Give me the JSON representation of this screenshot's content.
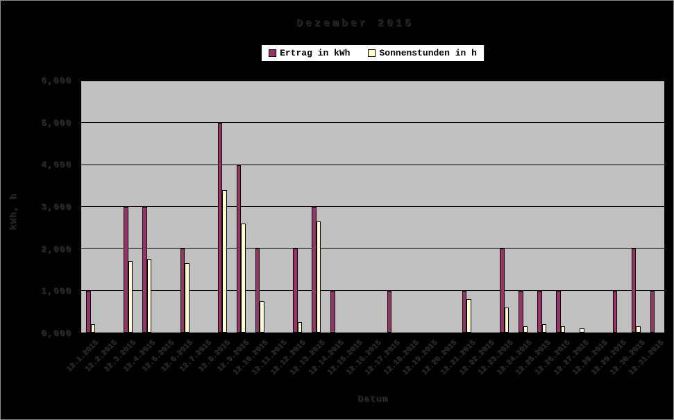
{
  "window": {
    "background_color": "#000000",
    "plot_background_color": "#C0C0C0",
    "gridline_color": "#000000"
  },
  "chart_data": {
    "type": "bar",
    "title": "Dezember 2015",
    "xlabel": "Datum",
    "ylabel": "kWh, h",
    "ylim": [
      0,
      6
    ],
    "ytick_labels": [
      "6,000",
      "5,000",
      "4,000",
      "3,000",
      "2,000",
      "1,000",
      "0,000"
    ],
    "grid": "horizontal",
    "legend_position": "top",
    "categories": [
      "12.1.2015",
      "12.2.2015",
      "12.3.2015",
      "12.4.2015",
      "12.5.2015",
      "12.6.2015",
      "12.7.2015",
      "12.8.2015",
      "12.9.2015",
      "12.10.2015",
      "12.11.2015",
      "12.12.2015",
      "12.13.2015",
      "12.14.2015",
      "12.15.2015",
      "12.16.2015",
      "12.17.2015",
      "12.18.2015",
      "12.19.2015",
      "12.20.2015",
      "12.21.2015",
      "12.22.2015",
      "12.23.2015",
      "12.24.2015",
      "12.25.2015",
      "12.26.2015",
      "12.27.2015",
      "12.28.2015",
      "12.29.2015",
      "12.30.2015",
      "12.31.2015"
    ],
    "series": [
      {
        "name": "Ertrag in kWh",
        "color": "#993366",
        "values": [
          1,
          0,
          3,
          3,
          0,
          2,
          0,
          5,
          4,
          2,
          0,
          2,
          3,
          1,
          0,
          0,
          1,
          0,
          0,
          0,
          1,
          0,
          2,
          1,
          1,
          1,
          0,
          0,
          1,
          2,
          1
        ]
      },
      {
        "name": "Sonnenstunden in h",
        "color": "#FFFFCC",
        "values": [
          0.2,
          0,
          1.7,
          1.75,
          0,
          1.65,
          0,
          3.4,
          2.6,
          0.75,
          0,
          0.25,
          2.65,
          0,
          0,
          0,
          0,
          0,
          0,
          0,
          0.8,
          0,
          0.6,
          0.15,
          0.2,
          0.15,
          0.1,
          0,
          0,
          0.15,
          0
        ]
      }
    ]
  }
}
